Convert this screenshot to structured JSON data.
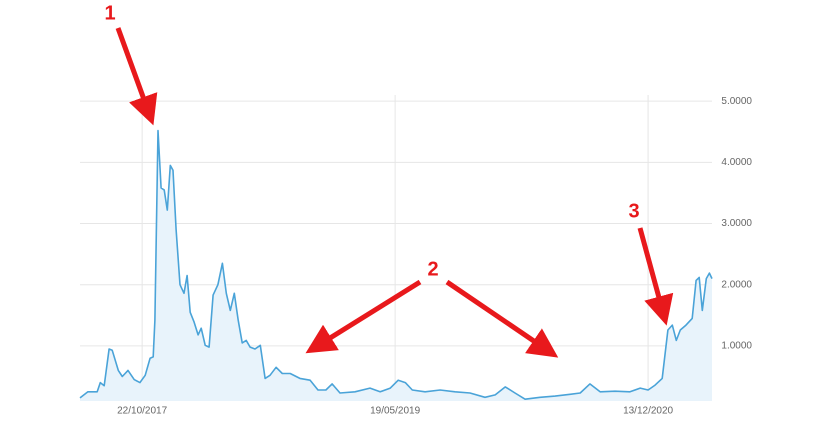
{
  "chart_data": {
    "type": "line",
    "x": [
      "2017-06-03",
      "2017-06-21",
      "2017-07-12",
      "2017-07-19",
      "2017-07-28",
      "2017-08-08",
      "2017-08-15",
      "2017-08-29",
      "2017-09-07",
      "2017-09-20",
      "2017-10-04",
      "2017-10-17",
      "2017-10-29",
      "2017-11-09",
      "2017-11-16",
      "2017-11-20",
      "2017-11-27",
      "2017-12-04",
      "2017-12-11",
      "2017-12-18",
      "2017-12-25",
      "2017-12-31",
      "2018-01-07",
      "2018-01-16",
      "2018-01-25",
      "2018-02-01",
      "2018-02-08",
      "2018-02-17",
      "2018-02-26",
      "2018-03-05",
      "2018-03-14",
      "2018-03-23",
      "2018-04-01",
      "2018-04-12",
      "2018-04-22",
      "2018-05-01",
      "2018-05-10",
      "2018-05-19",
      "2018-05-28",
      "2018-06-06",
      "2018-06-15",
      "2018-06-24",
      "2018-07-05",
      "2018-07-17",
      "2018-07-28",
      "2018-08-08",
      "2018-08-22",
      "2018-09-05",
      "2018-09-23",
      "2018-10-15",
      "2018-11-07",
      "2018-11-25",
      "2018-12-13",
      "2018-12-27",
      "2019-01-14",
      "2019-02-17",
      "2019-03-23",
      "2019-04-15",
      "2019-05-08",
      "2019-05-26",
      "2019-06-11",
      "2019-06-27",
      "2019-07-26",
      "2019-08-29",
      "2019-10-02",
      "2019-11-05",
      "2019-12-09",
      "2020-01-01",
      "2020-01-24",
      "2020-02-15",
      "2020-03-09",
      "2020-04-12",
      "2020-05-16",
      "2020-06-19",
      "2020-07-12",
      "2020-08-03",
      "2020-08-26",
      "2020-09-29",
      "2020-11-02",
      "2020-11-25",
      "2020-12-13",
      "2020-12-29",
      "2021-01-14",
      "2021-01-27",
      "2021-02-06",
      "2021-02-15",
      "2021-02-24",
      "2021-03-09",
      "2021-03-23",
      "2021-04-01",
      "2021-04-08",
      "2021-04-15",
      "2021-04-24",
      "2021-05-01",
      "2021-05-07"
    ],
    "series": [
      {
        "color": "#4aa3d8",
        "fill": "#e8f3fb",
        "values": [
          0.15,
          0.25,
          0.25,
          0.4,
          0.35,
          0.95,
          0.93,
          0.6,
          0.5,
          0.6,
          0.45,
          0.4,
          0.52,
          0.8,
          0.82,
          1.42,
          4.52,
          3.58,
          3.55,
          3.22,
          3.95,
          3.87,
          2.9,
          2.0,
          1.86,
          2.15,
          1.55,
          1.39,
          1.18,
          1.29,
          1.01,
          0.98,
          1.83,
          2.0,
          2.35,
          1.86,
          1.58,
          1.86,
          1.42,
          1.05,
          1.09,
          0.98,
          0.95,
          1.01,
          0.47,
          0.52,
          0.65,
          0.55,
          0.55,
          0.47,
          0.44,
          0.28,
          0.28,
          0.38,
          0.23,
          0.25,
          0.31,
          0.25,
          0.31,
          0.44,
          0.4,
          0.28,
          0.25,
          0.28,
          0.25,
          0.23,
          0.16,
          0.2,
          0.33,
          0.23,
          0.13,
          0.16,
          0.18,
          0.21,
          0.23,
          0.38,
          0.25,
          0.26,
          0.25,
          0.31,
          0.28,
          0.36,
          0.47,
          1.26,
          1.34,
          1.09,
          1.26,
          1.34,
          1.45,
          2.07,
          2.12,
          1.58,
          2.1,
          2.19,
          2.1
        ]
      }
    ],
    "xlim": [
      "2017-06-03",
      "2021-05-07"
    ],
    "xticks": [
      {
        "value": "2017-10-22",
        "label": "22/10/2017"
      },
      {
        "value": "2019-05-19",
        "label": "19/05/2019"
      },
      {
        "value": "2020-12-13",
        "label": "13/12/2020"
      }
    ],
    "ylim": [
      0.1,
      5.1
    ],
    "yticks": [
      {
        "value": 1,
        "label": "1.0000"
      },
      {
        "value": 2,
        "label": "2.0000"
      },
      {
        "value": 3,
        "label": "3.0000"
      },
      {
        "value": 4,
        "label": "4.0000"
      },
      {
        "value": 5,
        "label": "5.0000"
      }
    ],
    "grid": true,
    "annotations": [
      "1",
      "2",
      "3"
    ]
  }
}
